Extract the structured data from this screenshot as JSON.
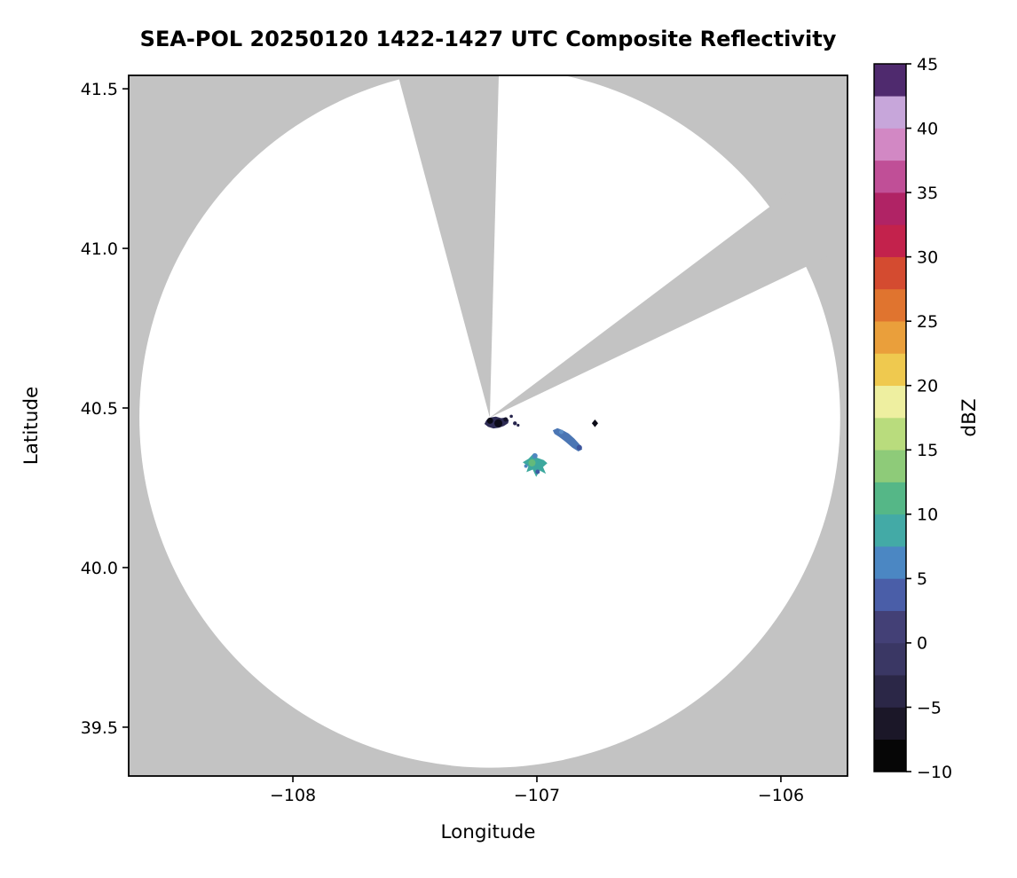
{
  "title": "SEA-POL 20250120 1422-1427 UTC Composite Reflectivity",
  "axes": {
    "xlabel": "Longitude",
    "ylabel": "Latitude",
    "xlim": [
      -108.673,
      -105.727
    ],
    "ylim": [
      39.347,
      41.542
    ],
    "xticks": {
      "values": [
        -108,
        -107,
        -106
      ],
      "labels": [
        "−108",
        "−107",
        "−106"
      ]
    },
    "yticks": {
      "values": [
        39.5,
        40.0,
        40.5,
        41.0,
        41.5
      ],
      "labels": [
        "39.5",
        "40.0",
        "40.5",
        "41.0",
        "41.5"
      ]
    },
    "background_color": "#ffffff",
    "masked_color": "#c3c3c3",
    "spine_color": "#000000",
    "grid": false
  },
  "chart_data": {
    "type": "heatmap",
    "subtype": "radar-composite-reflectivity-ppi",
    "title": "SEA-POL 20250120 1422-1427 UTC Composite Reflectivity",
    "xlabel": "Longitude",
    "ylabel": "Latitude",
    "xlim": [
      -108.673,
      -105.727
    ],
    "ylim": [
      39.347,
      41.542
    ],
    "radar": {
      "name": "SEA-POL",
      "center_lon": -107.193,
      "center_lat": 40.47,
      "range_lon_deg": 1.436,
      "range_lat_deg": 1.097
    },
    "blocked_sectors_deg_from_north": [
      {
        "az_start": -15,
        "az_end": 1.5
      },
      {
        "az_start": 53,
        "az_end": 64.5
      }
    ],
    "echoes": [
      {
        "name": "clutter-echo-at-radar",
        "approx_dbz": -5,
        "color": "#2e2c55",
        "polygon": [
          [
            -107.215,
            40.45
          ],
          [
            -107.207,
            40.462
          ],
          [
            -107.19,
            40.47
          ],
          [
            -107.168,
            40.473
          ],
          [
            -107.146,
            40.468
          ],
          [
            -107.128,
            40.47
          ],
          [
            -107.115,
            40.462
          ],
          [
            -107.118,
            40.452
          ],
          [
            -107.135,
            40.444
          ],
          [
            -107.155,
            40.438
          ],
          [
            -107.178,
            40.436
          ],
          [
            -107.2,
            40.441
          ]
        ],
        "accents": [
          {
            "lon": -107.192,
            "lat": 40.46,
            "r": 3.5,
            "color": "#0a0a16"
          },
          {
            "lon": -107.158,
            "lat": 40.452,
            "r": 4.5,
            "color": "#0d0c1a"
          },
          {
            "lon": -107.128,
            "lat": 40.464,
            "r": 2.5,
            "color": "#14132a"
          },
          {
            "lon": -107.09,
            "lat": 40.452,
            "r": 2.2,
            "color": "#26244c"
          },
          {
            "lon": -107.077,
            "lat": 40.446,
            "r": 1.6,
            "color": "#26244c"
          },
          {
            "lon": -107.105,
            "lat": 40.474,
            "r": 1.8,
            "color": "#26244c"
          }
        ]
      },
      {
        "name": "blue-echo-streak",
        "approx_dbz": 4,
        "color": "#4b76b4",
        "polygon": [
          [
            -106.935,
            40.43
          ],
          [
            -106.916,
            40.437
          ],
          [
            -106.896,
            40.431
          ],
          [
            -106.87,
            40.42
          ],
          [
            -106.846,
            40.404
          ],
          [
            -106.824,
            40.385
          ],
          [
            -106.814,
            40.37
          ],
          [
            -106.83,
            40.364
          ],
          [
            -106.855,
            40.376
          ],
          [
            -106.882,
            40.394
          ],
          [
            -106.91,
            40.41
          ],
          [
            -106.928,
            40.419
          ]
        ],
        "accents": [
          {
            "lon": -106.826,
            "lat": 40.376,
            "r": 3.0,
            "color": "#3c549c"
          },
          {
            "lon": -106.9,
            "lat": 40.425,
            "r": 2.5,
            "color": "#5b8ec6"
          }
        ]
      },
      {
        "name": "teal-echo-cluster",
        "approx_dbz": 8,
        "color": "#3da89e",
        "polygon": [
          [
            -107.058,
            40.33
          ],
          [
            -107.034,
            40.341
          ],
          [
            -107.013,
            40.358
          ],
          [
            -106.998,
            40.344
          ],
          [
            -106.972,
            40.337
          ],
          [
            -106.957,
            40.327
          ],
          [
            -106.975,
            40.315
          ],
          [
            -106.963,
            40.294
          ],
          [
            -106.988,
            40.304
          ],
          [
            -107.003,
            40.284
          ],
          [
            -107.017,
            40.307
          ],
          [
            -107.043,
            40.299
          ],
          [
            -107.035,
            40.317
          ]
        ],
        "accents": [
          {
            "lon": -107.02,
            "lat": 40.328,
            "r": 4.0,
            "color": "#63ba7b"
          },
          {
            "lon": -107.008,
            "lat": 40.35,
            "r": 3.0,
            "color": "#4f86c0"
          },
          {
            "lon": -106.997,
            "lat": 40.3,
            "r": 2.5,
            "color": "#3f5ba4"
          },
          {
            "lon": -107.045,
            "lat": 40.318,
            "r": 2.0,
            "color": "#4f86c0"
          }
        ]
      },
      {
        "name": "isolated-dark-point-echo",
        "approx_dbz": -9,
        "color": "#0c0c18",
        "polygon": [
          [
            -106.762,
            40.464
          ],
          [
            -106.749,
            40.452
          ],
          [
            -106.762,
            40.44
          ],
          [
            -106.775,
            40.452
          ]
        ],
        "accents": []
      }
    ],
    "colorbar": {
      "label": "dBZ",
      "min": -10,
      "max": 45,
      "tick_values": [
        -10,
        -5,
        0,
        5,
        10,
        15,
        20,
        25,
        30,
        35,
        40,
        45
      ],
      "tick_labels": [
        "−10",
        "−5",
        "0",
        "5",
        "10",
        "15",
        "20",
        "25",
        "30",
        "35",
        "40",
        "45"
      ],
      "bin_size_dbz": 2.5,
      "bin_colors_bottom_to_top": [
        "#060606",
        "#1b1728",
        "#2b2747",
        "#3a3764",
        "#434076",
        "#4a5ea8",
        "#4b87c3",
        "#43aaa6",
        "#55b787",
        "#8ecb79",
        "#b9dc7d",
        "#eeefa0",
        "#efc94f",
        "#ea9f3b",
        "#e0742f",
        "#d44b30",
        "#c3224c",
        "#b02365",
        "#c04f97",
        "#d288c4",
        "#c7a6da",
        "#4f2a6e"
      ]
    },
    "legend": "none"
  }
}
